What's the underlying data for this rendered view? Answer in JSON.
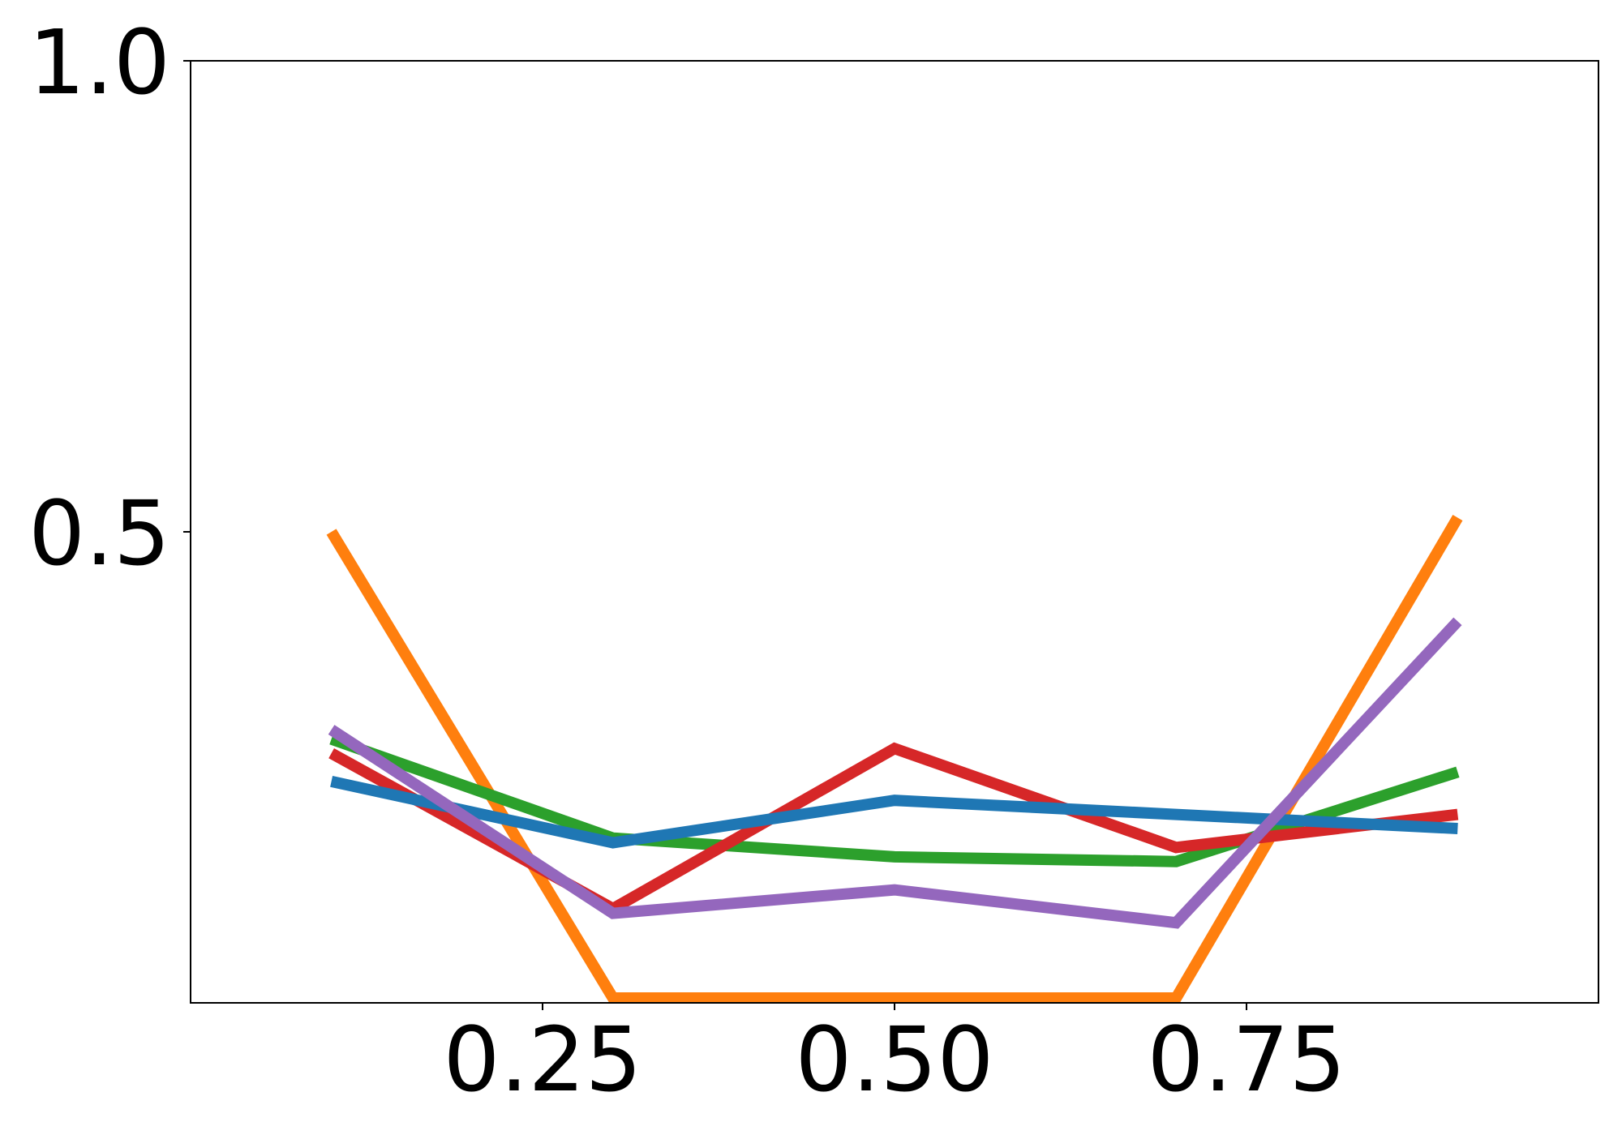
{
  "chart_data": {
    "type": "line",
    "title": "",
    "xlabel": "",
    "ylabel": "",
    "xlim": [
      0.0,
      1.0
    ],
    "ylim": [
      0.0,
      1.0
    ],
    "x": [
      0.1,
      0.3,
      0.5,
      0.7,
      0.9
    ],
    "xticks": [
      0.25,
      0.5,
      0.75
    ],
    "xtick_labels": [
      "0.25",
      "0.50",
      "0.75"
    ],
    "yticks": [
      0.5,
      1.0
    ],
    "ytick_labels": [
      "0.5",
      "1.0"
    ],
    "grid": false,
    "legend": "none",
    "series": [
      {
        "color": "#ff7f0e",
        "values": [
          0.5,
          0.0,
          0.0,
          0.0,
          0.515
        ]
      },
      {
        "color": "#2ca02c",
        "values": [
          0.28,
          0.175,
          0.155,
          0.15,
          0.245
        ]
      },
      {
        "color": "#d62728",
        "values": [
          0.265,
          0.1,
          0.27,
          0.165,
          0.2
        ]
      },
      {
        "color": "#1f77b4",
        "values": [
          0.235,
          0.17,
          0.215,
          0.2,
          0.185
        ]
      },
      {
        "color": "#9467bd",
        "values": [
          0.29,
          0.095,
          0.12,
          0.085,
          0.405
        ]
      }
    ]
  }
}
